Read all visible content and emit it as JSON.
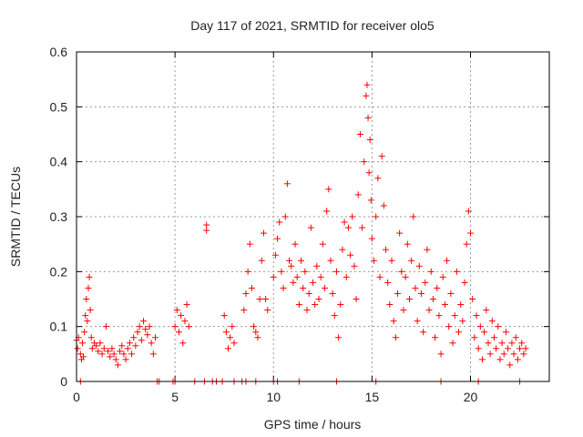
{
  "chart_data": {
    "type": "scatter",
    "title": "Day 117 of 2021, SRMTID for receiver olo5",
    "xlabel": "GPS time / hours",
    "ylabel": "SRMTID / TECUs",
    "xlim": [
      0,
      24
    ],
    "ylim": [
      0,
      0.6
    ],
    "xticks": [
      0,
      5,
      10,
      15,
      20
    ],
    "xtick_labels": [
      "0",
      "5",
      "10",
      "15",
      "20"
    ],
    "yticks": [
      0,
      0.1,
      0.2,
      0.3,
      0.4,
      0.5,
      0.6
    ],
    "ytick_labels": [
      "0",
      "0.1",
      "0.2",
      "0.3",
      "0.4",
      "0.5",
      "0.6"
    ],
    "grid": true,
    "marker": "plus",
    "color": "#ff0000",
    "series": [
      {
        "name": "SRMTID",
        "points": [
          [
            0.0,
            0.075
          ],
          [
            0.05,
            0.06
          ],
          [
            0.1,
            0.08
          ],
          [
            0.2,
            0.05
          ],
          [
            0.25,
            0.04
          ],
          [
            0.3,
            0.07
          ],
          [
            0.35,
            0.045
          ],
          [
            0.4,
            0.09
          ],
          [
            0.45,
            0.12
          ],
          [
            0.5,
            0.15
          ],
          [
            0.55,
            0.11
          ],
          [
            0.6,
            0.17
          ],
          [
            0.65,
            0.19
          ],
          [
            0.7,
            0.13
          ],
          [
            0.75,
            0.08
          ],
          [
            0.8,
            0.06
          ],
          [
            0.9,
            0.07
          ],
          [
            1.0,
            0.065
          ],
          [
            1.1,
            0.055
          ],
          [
            1.2,
            0.07
          ],
          [
            1.3,
            0.05
          ],
          [
            1.4,
            0.06
          ],
          [
            1.5,
            0.1
          ],
          [
            1.6,
            0.055
          ],
          [
            1.7,
            0.045
          ],
          [
            1.8,
            0.06
          ],
          [
            1.9,
            0.05
          ],
          [
            2.0,
            0.04
          ],
          [
            2.1,
            0.03
          ],
          [
            2.2,
            0.055
          ],
          [
            2.3,
            0.065
          ],
          [
            2.4,
            0.05
          ],
          [
            2.5,
            0.04
          ],
          [
            2.6,
            0.06
          ],
          [
            2.7,
            0.07
          ],
          [
            2.8,
            0.05
          ],
          [
            2.9,
            0.08
          ],
          [
            3.0,
            0.065
          ],
          [
            3.1,
            0.09
          ],
          [
            3.2,
            0.1
          ],
          [
            3.3,
            0.075
          ],
          [
            3.4,
            0.11
          ],
          [
            3.5,
            0.095
          ],
          [
            3.6,
            0.085
          ],
          [
            3.7,
            0.1
          ],
          [
            3.8,
            0.07
          ],
          [
            3.9,
            0.05
          ],
          [
            4.0,
            0.08
          ],
          [
            5.0,
            0.1
          ],
          [
            5.1,
            0.13
          ],
          [
            5.2,
            0.09
          ],
          [
            5.3,
            0.12
          ],
          [
            5.4,
            0.07
          ],
          [
            5.5,
            0.11
          ],
          [
            5.6,
            0.14
          ],
          [
            5.7,
            0.1
          ],
          [
            6.6,
            0.285
          ],
          [
            6.6,
            0.275
          ],
          [
            7.5,
            0.12
          ],
          [
            7.6,
            0.09
          ],
          [
            7.7,
            0.06
          ],
          [
            7.8,
            0.08
          ],
          [
            7.9,
            0.1
          ],
          [
            8.0,
            0.07
          ],
          [
            8.5,
            0.13
          ],
          [
            8.6,
            0.16
          ],
          [
            8.7,
            0.2
          ],
          [
            8.8,
            0.25
          ],
          [
            8.9,
            0.17
          ],
          [
            9.0,
            0.1
          ],
          [
            9.1,
            0.09
          ],
          [
            9.2,
            0.08
          ],
          [
            9.3,
            0.15
          ],
          [
            9.4,
            0.22
          ],
          [
            9.5,
            0.27
          ],
          [
            9.6,
            0.15
          ],
          [
            9.7,
            0.13
          ],
          [
            10.0,
            0.19
          ],
          [
            10.1,
            0.23
          ],
          [
            10.2,
            0.26
          ],
          [
            10.3,
            0.29
          ],
          [
            10.4,
            0.2
          ],
          [
            10.5,
            0.17
          ],
          [
            10.6,
            0.3
          ],
          [
            10.7,
            0.36
          ],
          [
            10.8,
            0.22
          ],
          [
            10.9,
            0.21
          ],
          [
            11.0,
            0.18
          ],
          [
            11.1,
            0.25
          ],
          [
            11.2,
            0.19
          ],
          [
            11.3,
            0.14
          ],
          [
            11.4,
            0.22
          ],
          [
            11.5,
            0.17
          ],
          [
            11.6,
            0.2
          ],
          [
            11.7,
            0.13
          ],
          [
            11.8,
            0.16
          ],
          [
            11.9,
            0.28
          ],
          [
            12.0,
            0.18
          ],
          [
            12.1,
            0.14
          ],
          [
            12.2,
            0.21
          ],
          [
            12.3,
            0.15
          ],
          [
            12.4,
            0.19
          ],
          [
            12.5,
            0.25
          ],
          [
            12.6,
            0.17
          ],
          [
            12.7,
            0.31
          ],
          [
            12.8,
            0.35
          ],
          [
            12.9,
            0.22
          ],
          [
            13.0,
            0.16
          ],
          [
            13.1,
            0.12
          ],
          [
            13.2,
            0.2
          ],
          [
            13.3,
            0.08
          ],
          [
            13.4,
            0.14
          ],
          [
            13.5,
            0.24
          ],
          [
            13.6,
            0.29
          ],
          [
            13.7,
            0.19
          ],
          [
            13.8,
            0.28
          ],
          [
            13.9,
            0.23
          ],
          [
            14.0,
            0.3
          ],
          [
            14.1,
            0.21
          ],
          [
            14.2,
            0.15
          ],
          [
            14.3,
            0.34
          ],
          [
            14.4,
            0.45
          ],
          [
            14.5,
            0.28
          ],
          [
            14.6,
            0.4
          ],
          [
            14.7,
            0.52
          ],
          [
            14.75,
            0.54
          ],
          [
            14.8,
            0.48
          ],
          [
            14.85,
            0.38
          ],
          [
            14.9,
            0.44
          ],
          [
            14.95,
            0.33
          ],
          [
            15.0,
            0.26
          ],
          [
            15.1,
            0.22
          ],
          [
            15.2,
            0.3
          ],
          [
            15.3,
            0.37
          ],
          [
            15.4,
            0.19
          ],
          [
            15.5,
            0.41
          ],
          [
            15.6,
            0.32
          ],
          [
            15.7,
            0.24
          ],
          [
            15.8,
            0.18
          ],
          [
            15.9,
            0.14
          ],
          [
            16.0,
            0.22
          ],
          [
            16.1,
            0.11
          ],
          [
            16.2,
            0.08
          ],
          [
            16.3,
            0.16
          ],
          [
            16.4,
            0.27
          ],
          [
            16.5,
            0.2
          ],
          [
            16.6,
            0.13
          ],
          [
            16.7,
            0.19
          ],
          [
            16.8,
            0.25
          ],
          [
            16.9,
            0.15
          ],
          [
            17.0,
            0.22
          ],
          [
            17.1,
            0.3
          ],
          [
            17.2,
            0.17
          ],
          [
            17.3,
            0.11
          ],
          [
            17.4,
            0.21
          ],
          [
            17.5,
            0.16
          ],
          [
            17.6,
            0.09
          ],
          [
            17.7,
            0.18
          ],
          [
            17.8,
            0.24
          ],
          [
            17.9,
            0.13
          ],
          [
            18.0,
            0.2
          ],
          [
            18.1,
            0.15
          ],
          [
            18.2,
            0.08
          ],
          [
            18.3,
            0.17
          ],
          [
            18.4,
            0.12
          ],
          [
            18.5,
            0.05
          ],
          [
            18.6,
            0.19
          ],
          [
            18.7,
            0.14
          ],
          [
            18.8,
            0.22
          ],
          [
            18.9,
            0.1
          ],
          [
            19.0,
            0.16
          ],
          [
            19.1,
            0.07
          ],
          [
            19.2,
            0.12
          ],
          [
            19.3,
            0.2
          ],
          [
            19.4,
            0.09
          ],
          [
            19.5,
            0.14
          ],
          [
            19.6,
            0.11
          ],
          [
            19.7,
            0.18
          ],
          [
            19.8,
            0.25
          ],
          [
            19.9,
            0.31
          ],
          [
            20.0,
            0.27
          ],
          [
            20.1,
            0.15
          ],
          [
            20.2,
            0.08
          ],
          [
            20.3,
            0.12
          ],
          [
            20.4,
            0.06
          ],
          [
            20.5,
            0.1
          ],
          [
            20.6,
            0.04
          ],
          [
            20.7,
            0.09
          ],
          [
            20.8,
            0.13
          ],
          [
            20.9,
            0.07
          ],
          [
            21.0,
            0.05
          ],
          [
            21.1,
            0.11
          ],
          [
            21.2,
            0.08
          ],
          [
            21.3,
            0.06
          ],
          [
            21.4,
            0.1
          ],
          [
            21.5,
            0.04
          ],
          [
            21.6,
            0.07
          ],
          [
            21.7,
            0.05
          ],
          [
            21.8,
            0.09
          ],
          [
            21.9,
            0.06
          ],
          [
            22.0,
            0.03
          ],
          [
            22.1,
            0.07
          ],
          [
            22.2,
            0.05
          ],
          [
            22.3,
            0.08
          ],
          [
            22.4,
            0.04
          ],
          [
            22.5,
            0.06
          ],
          [
            22.6,
            0.07
          ],
          [
            22.7,
            0.05
          ],
          [
            22.8,
            0.06
          ],
          [
            0.2,
            0.0
          ],
          [
            4.1,
            0.0
          ],
          [
            4.2,
            0.0
          ],
          [
            4.9,
            0.0
          ],
          [
            5.0,
            0.0
          ],
          [
            6.0,
            0.0
          ],
          [
            6.5,
            0.0
          ],
          [
            6.9,
            0.0
          ],
          [
            7.1,
            0.0
          ],
          [
            7.4,
            0.0
          ],
          [
            8.0,
            0.0
          ],
          [
            8.4,
            0.0
          ],
          [
            8.6,
            0.0
          ],
          [
            9.1,
            0.0
          ],
          [
            10.0,
            0.0
          ],
          [
            10.2,
            0.0
          ],
          [
            11.3,
            0.0
          ],
          [
            13.2,
            0.0
          ],
          [
            15.2,
            0.0
          ],
          [
            18.5,
            0.0
          ],
          [
            20.4,
            0.0
          ],
          [
            22.5,
            0.0
          ]
        ]
      }
    ]
  }
}
